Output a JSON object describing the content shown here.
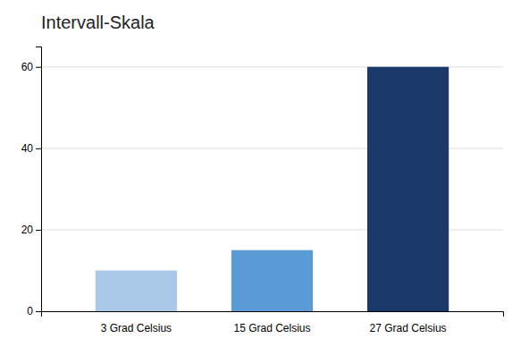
{
  "chart_data": {
    "type": "bar",
    "title": "Intervall-Skala",
    "categories": [
      "3 Grad Celsius",
      "15 Grad Celsius",
      "27 Grad Celsius"
    ],
    "values": [
      10,
      15,
      60
    ],
    "colors": [
      "#aac8e8",
      "#5b9bd5",
      "#1b3a6b"
    ],
    "ylim": [
      0,
      65
    ],
    "yticks": [
      0,
      20,
      40,
      60
    ],
    "grid": true
  }
}
